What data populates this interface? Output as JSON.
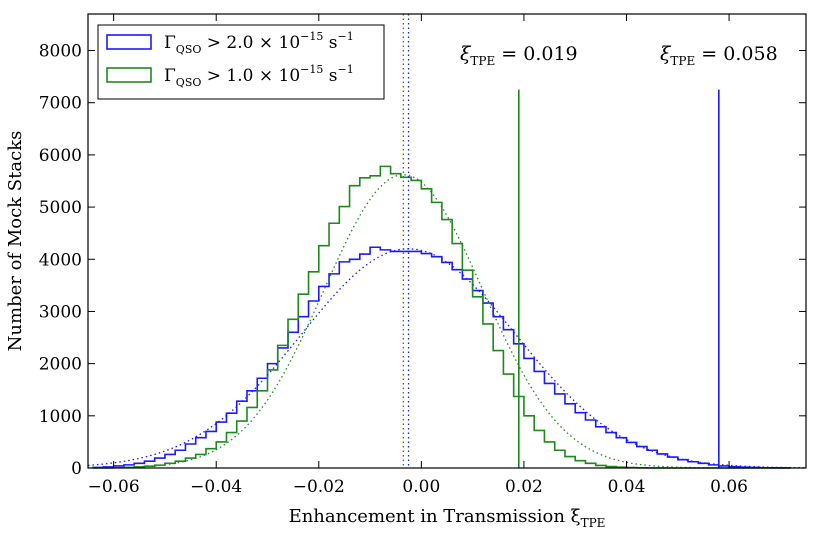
{
  "chart_data": {
    "type": "histogram",
    "xlabel": "Enhancement in Transmission ξ",
    "xlabel_sub": "TPE",
    "ylabel": "Number of Mock Stacks",
    "xlim": [
      -0.065,
      0.075
    ],
    "ylim": [
      0,
      8700
    ],
    "xticks": [
      -0.06,
      -0.04,
      -0.02,
      0.0,
      0.02,
      0.04,
      0.06
    ],
    "xtick_labels": [
      "−0.06",
      "−0.04",
      "−0.02",
      "0.00",
      "0.02",
      "0.04",
      "0.06"
    ],
    "yticks": [
      0,
      1000,
      2000,
      3000,
      4000,
      5000,
      6000,
      7000,
      8000
    ],
    "ytick_labels": [
      "0",
      "1000",
      "2000",
      "3000",
      "4000",
      "5000",
      "6000",
      "7000",
      "8000"
    ],
    "grid": false,
    "legend_placement": "top-left",
    "series": [
      {
        "name": "Γ_QSO > 2.0 × 10^-15 s^-1",
        "legend": {
          "main": "Γ",
          "sub": "QSO",
          "rest": " > 2.0 × 10",
          "sup": "−15",
          "unit": " s",
          "unit_sup": "−1"
        },
        "color": "#1a1aff",
        "bin_width": 0.002,
        "bin_centers": [
          -0.063,
          -0.061,
          -0.059,
          -0.057,
          -0.055,
          -0.053,
          -0.051,
          -0.049,
          -0.047,
          -0.045,
          -0.043,
          -0.041,
          -0.039,
          -0.037,
          -0.035,
          -0.033,
          -0.031,
          -0.029,
          -0.027,
          -0.025,
          -0.023,
          -0.021,
          -0.019,
          -0.017,
          -0.015,
          -0.013,
          -0.011,
          -0.009,
          -0.007,
          -0.005,
          -0.003,
          -0.001,
          0.001,
          0.003,
          0.005,
          0.007,
          0.009,
          0.011,
          0.013,
          0.015,
          0.017,
          0.019,
          0.021,
          0.023,
          0.025,
          0.027,
          0.029,
          0.031,
          0.033,
          0.035,
          0.037,
          0.039,
          0.041,
          0.043,
          0.045,
          0.047,
          0.049,
          0.051,
          0.053,
          0.055,
          0.057,
          0.059,
          0.061,
          0.063,
          0.065,
          0.067,
          0.069,
          0.071
        ],
        "counts": [
          10,
          20,
          40,
          60,
          90,
          130,
          190,
          260,
          340,
          460,
          580,
          700,
          880,
          1050,
          1280,
          1480,
          1720,
          2000,
          2300,
          2600,
          2900,
          3200,
          3480,
          3720,
          3950,
          4000,
          4100,
          4230,
          4180,
          4150,
          4150,
          4150,
          4110,
          4050,
          3940,
          3800,
          3620,
          3400,
          3160,
          2900,
          2650,
          2380,
          2100,
          1850,
          1620,
          1420,
          1230,
          1060,
          920,
          790,
          680,
          580,
          490,
          410,
          340,
          270,
          210,
          160,
          120,
          90,
          60,
          40,
          25,
          15,
          10,
          5,
          3,
          2
        ],
        "fit_peak": 4200,
        "mean": -0.0025,
        "sigma": 0.021,
        "observed_xi": 0.058,
        "observed_line_top": 7250
      },
      {
        "name": "Γ_QSO > 1.0 × 10^-15 s^-1",
        "legend": {
          "main": "Γ",
          "sub": "QSO",
          "rest": " > 1.0 × 10",
          "sup": "−15",
          "unit": " s",
          "unit_sup": "−1"
        },
        "color": "#1e8a1e",
        "bin_width": 0.002,
        "bin_centers": [
          -0.063,
          -0.061,
          -0.059,
          -0.057,
          -0.055,
          -0.053,
          -0.051,
          -0.049,
          -0.047,
          -0.045,
          -0.043,
          -0.041,
          -0.039,
          -0.037,
          -0.035,
          -0.033,
          -0.031,
          -0.029,
          -0.027,
          -0.025,
          -0.023,
          -0.021,
          -0.019,
          -0.017,
          -0.015,
          -0.013,
          -0.011,
          -0.009,
          -0.007,
          -0.005,
          -0.003,
          -0.001,
          0.001,
          0.003,
          0.005,
          0.007,
          0.009,
          0.011,
          0.013,
          0.015,
          0.017,
          0.019,
          0.021,
          0.023,
          0.025,
          0.027,
          0.029,
          0.031,
          0.033,
          0.035,
          0.037,
          0.039,
          0.041,
          0.043,
          0.045,
          0.047,
          0.049,
          0.051,
          0.053,
          0.055,
          0.057,
          0.059,
          0.061,
          0.063,
          0.065,
          0.067,
          0.069,
          0.071
        ],
        "counts": [
          0,
          2,
          5,
          10,
          20,
          35,
          55,
          90,
          130,
          190,
          260,
          370,
          500,
          680,
          900,
          1160,
          1480,
          1880,
          2350,
          2850,
          3330,
          3760,
          4260,
          4690,
          5010,
          5410,
          5560,
          5600,
          5780,
          5640,
          5570,
          5510,
          5350,
          5090,
          4760,
          4300,
          3790,
          3280,
          2760,
          2250,
          1800,
          1370,
          1000,
          720,
          500,
          340,
          220,
          140,
          90,
          50,
          28,
          15,
          8,
          4,
          2,
          1,
          0,
          0,
          0,
          0,
          0,
          0,
          0,
          0,
          0,
          0,
          0,
          0
        ],
        "fit_peak": 5620,
        "mean": -0.0035,
        "sigma": 0.0155,
        "observed_xi": 0.019,
        "observed_line_top": 7250
      }
    ],
    "annotations": [
      {
        "text": "ξ",
        "sub": "TPE",
        "rest": " = 0.019",
        "x": 0.019
      },
      {
        "text": "ξ",
        "sub": "TPE",
        "rest": " = 0.058",
        "x": 0.058
      }
    ]
  }
}
